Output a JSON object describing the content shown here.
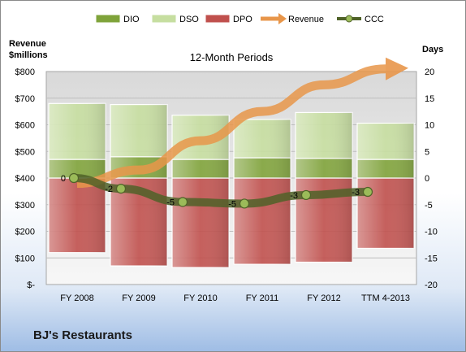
{
  "chart_data": {
    "type": "bar",
    "title": "12-Month Periods",
    "company": "BJ's Restaurants",
    "left_axis_label": [
      "Revenue",
      "$millions"
    ],
    "right_axis_label": "Days",
    "categories": [
      "FY 2008",
      "FY 2009",
      "FY 2010",
      "FY 2011",
      "FY 2012",
      "TTM 4-2013"
    ],
    "left_ticks": [
      "$-",
      "$100",
      "$200",
      "$300",
      "$400",
      "$500",
      "$600",
      "$700",
      "$800"
    ],
    "right_ticks": [
      "-20",
      "-15",
      "-10",
      "-5",
      "0",
      "5",
      "10",
      "15",
      "20"
    ],
    "left_ylim": [
      0,
      800
    ],
    "right_ylim": [
      -20,
      20
    ],
    "legend_position": "top",
    "stacked_days_series": [
      {
        "name": "DPO",
        "color": "#c0504d",
        "bottom": [
          -14,
          -16.5,
          -16.8,
          -16.2,
          -15.8,
          -13.2
        ],
        "top": [
          0,
          0,
          0,
          0,
          0,
          0
        ]
      },
      {
        "name": "DIO",
        "color": "#7fa33a",
        "bottom": [
          0,
          0,
          0,
          0,
          0,
          0
        ],
        "top": [
          3.5,
          4,
          3.5,
          3.8,
          3.7,
          3.5
        ]
      },
      {
        "name": "DSO",
        "color": "#c6dea0",
        "bottom": [
          3.5,
          4,
          3.5,
          3.8,
          3.7,
          3.5
        ],
        "top": [
          14,
          13.8,
          11.8,
          11,
          12.3,
          10.3
        ]
      }
    ],
    "revenue": {
      "name": "Revenue",
      "color": "#e8964a",
      "values": [
        380,
        430,
        540,
        650,
        750,
        810
      ]
    },
    "ccc": {
      "name": "CCC",
      "color": "#4f6228",
      "values": [
        0,
        -2,
        -4.5,
        -4.8,
        -3.2,
        -2.6
      ],
      "labels": [
        "0",
        "-2",
        "-5",
        "-5",
        "-3",
        "-3"
      ]
    },
    "legend": [
      {
        "name": "DIO",
        "kind": "box",
        "color": "#7fa33a"
      },
      {
        "name": "DSO",
        "kind": "box",
        "color": "#c6dea0"
      },
      {
        "name": "DPO",
        "kind": "box",
        "color": "#c0504d"
      },
      {
        "name": "Revenue",
        "kind": "arrow",
        "color": "#e8964a"
      },
      {
        "name": "CCC",
        "kind": "line",
        "color": "#4f6228"
      }
    ]
  }
}
